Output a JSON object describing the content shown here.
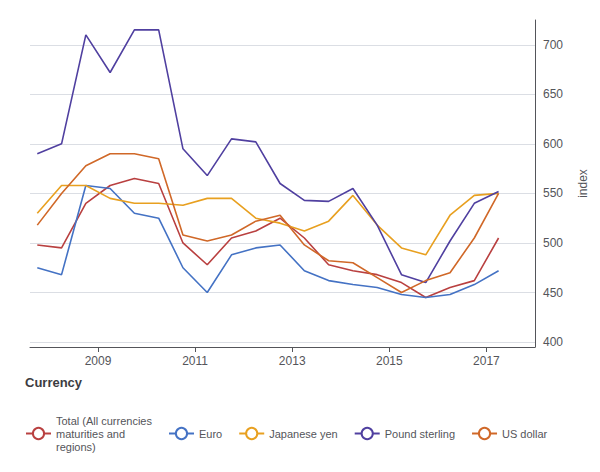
{
  "chart_data": {
    "type": "line",
    "ylabel": "index",
    "legend_title": "Currency",
    "x": [
      2007.75,
      2008.25,
      2008.75,
      2009.25,
      2009.75,
      2010.25,
      2010.75,
      2011.25,
      2011.75,
      2012.25,
      2012.75,
      2013.25,
      2013.75,
      2014.25,
      2014.75,
      2015.25,
      2015.75,
      2016.25,
      2016.75,
      2017.25
    ],
    "xlim": [
      2007.6,
      2018.0
    ],
    "xticks": [
      2009,
      2011,
      2013,
      2015,
      2017
    ],
    "ylim": [
      395,
      725
    ],
    "yticks": [
      400,
      450,
      500,
      550,
      600,
      650,
      700
    ],
    "grid": true,
    "legend": "bottom",
    "series": [
      {
        "name": "Total (All currencies\nmaturities and\nregions)",
        "color": "#b94040",
        "values": [
          498,
          495,
          540,
          558,
          565,
          560,
          500,
          478,
          505,
          512,
          525,
          505,
          478,
          472,
          468,
          460,
          445,
          455,
          462,
          505
        ]
      },
      {
        "name": "Euro",
        "color": "#4472c4",
        "values": [
          475,
          468,
          558,
          555,
          530,
          525,
          475,
          450,
          488,
          495,
          498,
          472,
          462,
          458,
          455,
          448,
          445,
          448,
          458,
          472
        ]
      },
      {
        "name": "Japanese yen",
        "color": "#e8a020",
        "values": [
          530,
          558,
          558,
          545,
          540,
          540,
          538,
          545,
          545,
          525,
          520,
          512,
          522,
          548,
          518,
          495,
          488,
          528,
          548,
          550
        ]
      },
      {
        "name": "Pound sterling",
        "color": "#5040a0",
        "values": [
          590,
          600,
          710,
          672,
          715,
          715,
          595,
          568,
          605,
          602,
          560,
          543,
          542,
          555,
          518,
          468,
          460,
          502,
          540,
          552
        ]
      },
      {
        "name": "US dollar",
        "color": "#d06828",
        "values": [
          518,
          550,
          578,
          590,
          590,
          585,
          508,
          502,
          508,
          522,
          528,
          498,
          482,
          480,
          465,
          450,
          462,
          470,
          505,
          550
        ]
      }
    ]
  }
}
